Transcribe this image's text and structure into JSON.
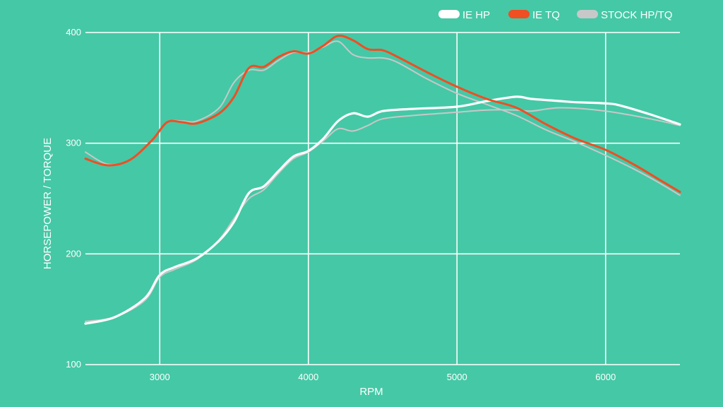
{
  "chart_data": {
    "type": "line",
    "xlabel": "RPM",
    "ylabel": "HORSEPOWER / TORQUE",
    "xlim": [
      2500,
      6500
    ],
    "ylim": [
      100,
      400
    ],
    "x_ticks": [
      3000,
      4000,
      5000,
      6000
    ],
    "y_ticks": [
      100,
      200,
      300,
      400
    ],
    "grid": true,
    "legend_position": "top-right",
    "legend": [
      {
        "label": "IE HP",
        "color": "#ffffff"
      },
      {
        "label": "IE TQ",
        "color": "#f04e23"
      },
      {
        "label": "STOCK HP/TQ",
        "color": "#c8c8c8"
      }
    ],
    "series": [
      {
        "name": "IE HP",
        "color": "#ffffff",
        "points": [
          [
            2500,
            137
          ],
          [
            2700,
            143
          ],
          [
            2900,
            160
          ],
          [
            3000,
            181
          ],
          [
            3100,
            188
          ],
          [
            3250,
            196
          ],
          [
            3400,
            212
          ],
          [
            3500,
            229
          ],
          [
            3600,
            255
          ],
          [
            3700,
            261
          ],
          [
            3800,
            275
          ],
          [
            3900,
            288
          ],
          [
            4000,
            293
          ],
          [
            4100,
            304
          ],
          [
            4200,
            320
          ],
          [
            4300,
            327
          ],
          [
            4400,
            324
          ],
          [
            4500,
            329
          ],
          [
            4700,
            331
          ],
          [
            5000,
            333
          ],
          [
            5200,
            338
          ],
          [
            5400,
            342
          ],
          [
            5500,
            340
          ],
          [
            5700,
            338
          ],
          [
            5800,
            337
          ],
          [
            6000,
            336
          ],
          [
            6100,
            334
          ],
          [
            6300,
            326
          ],
          [
            6500,
            317
          ]
        ]
      },
      {
        "name": "STOCK HP",
        "color": "#c8c8c8",
        "points": [
          [
            2500,
            139
          ],
          [
            2700,
            143
          ],
          [
            2900,
            158
          ],
          [
            3000,
            179
          ],
          [
            3100,
            186
          ],
          [
            3250,
            195
          ],
          [
            3400,
            213
          ],
          [
            3500,
            232
          ],
          [
            3600,
            250
          ],
          [
            3700,
            258
          ],
          [
            3800,
            273
          ],
          [
            3900,
            286
          ],
          [
            4000,
            292
          ],
          [
            4100,
            302
          ],
          [
            4200,
            313
          ],
          [
            4300,
            311
          ],
          [
            4400,
            316
          ],
          [
            4500,
            322
          ],
          [
            4700,
            325
          ],
          [
            5000,
            328
          ],
          [
            5200,
            330
          ],
          [
            5400,
            330
          ],
          [
            5500,
            329
          ],
          [
            5700,
            332
          ],
          [
            6000,
            329
          ],
          [
            6300,
            322
          ],
          [
            6500,
            316
          ]
        ]
      },
      {
        "name": "IE TQ",
        "color": "#f04e23",
        "points": [
          [
            2500,
            286
          ],
          [
            2650,
            280
          ],
          [
            2800,
            285
          ],
          [
            2950,
            303
          ],
          [
            3050,
            319
          ],
          [
            3150,
            319
          ],
          [
            3250,
            318
          ],
          [
            3400,
            327
          ],
          [
            3500,
            342
          ],
          [
            3600,
            368
          ],
          [
            3700,
            369
          ],
          [
            3800,
            378
          ],
          [
            3900,
            383
          ],
          [
            4000,
            381
          ],
          [
            4100,
            388
          ],
          [
            4200,
            397
          ],
          [
            4300,
            393
          ],
          [
            4400,
            385
          ],
          [
            4500,
            384
          ],
          [
            4600,
            378
          ],
          [
            4800,
            364
          ],
          [
            5000,
            351
          ],
          [
            5200,
            340
          ],
          [
            5400,
            332
          ],
          [
            5600,
            317
          ],
          [
            5800,
            304
          ],
          [
            6000,
            294
          ],
          [
            6200,
            280
          ],
          [
            6350,
            268
          ],
          [
            6500,
            256
          ]
        ]
      },
      {
        "name": "STOCK TQ",
        "color": "#c8c8c8",
        "points": [
          [
            2500,
            292
          ],
          [
            2650,
            281
          ],
          [
            2800,
            285
          ],
          [
            2950,
            303
          ],
          [
            3050,
            319
          ],
          [
            3150,
            320
          ],
          [
            3250,
            320
          ],
          [
            3400,
            332
          ],
          [
            3500,
            355
          ],
          [
            3600,
            366
          ],
          [
            3700,
            366
          ],
          [
            3800,
            375
          ],
          [
            3900,
            382
          ],
          [
            4000,
            382
          ],
          [
            4100,
            387
          ],
          [
            4200,
            392
          ],
          [
            4300,
            380
          ],
          [
            4400,
            377
          ],
          [
            4500,
            377
          ],
          [
            4600,
            373
          ],
          [
            4800,
            358
          ],
          [
            5000,
            345
          ],
          [
            5200,
            335
          ],
          [
            5400,
            325
          ],
          [
            5600,
            312
          ],
          [
            5800,
            301
          ],
          [
            6000,
            289
          ],
          [
            6200,
            276
          ],
          [
            6350,
            265
          ],
          [
            6500,
            253
          ]
        ]
      }
    ]
  }
}
